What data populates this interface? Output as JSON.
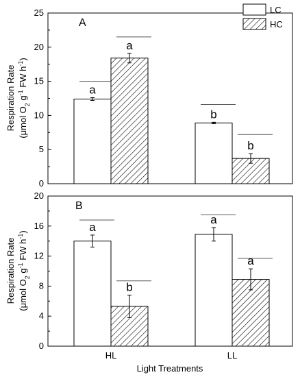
{
  "chart_data": [
    {
      "panel_label": "A",
      "type": "bar",
      "categories": [
        "HL",
        "LL"
      ],
      "ylim": [
        0,
        25
      ],
      "yticks": [
        "0",
        "5",
        "10",
        "15",
        "20",
        "25"
      ],
      "ylabel_line1": "Respiration Rate",
      "ylabel_line2": "(μmol O",
      "ylabel_sub": "2",
      "ylabel_rest": " g",
      "ylabel_sup1": "-1",
      "ylabel_rest2": " FW h",
      "ylabel_sup2": "-1",
      "ylabel_close": ")",
      "series": [
        {
          "name": "LC",
          "values": [
            12.4,
            8.9
          ],
          "errors": [
            0.2,
            0.1
          ],
          "letters": [
            "a",
            "b"
          ],
          "line_levels": [
            15.0,
            11.6
          ]
        },
        {
          "name": "HC",
          "values": [
            18.4,
            3.7
          ],
          "errors": [
            0.7,
            0.7
          ],
          "letters": [
            "a",
            "b"
          ],
          "line_levels": [
            21.5,
            7.2
          ]
        }
      ]
    },
    {
      "panel_label": "B",
      "type": "bar",
      "categories": [
        "HL",
        "LL"
      ],
      "ylim": [
        0,
        20
      ],
      "yticks": [
        "0",
        "4",
        "8",
        "12",
        "16",
        "20"
      ],
      "ylabel_line1": "Respiration Rate",
      "ylabel_line2": "(μmol O",
      "ylabel_sub": "2",
      "ylabel_rest": " g",
      "ylabel_sup1": "-1",
      "ylabel_rest2": " FW h",
      "ylabel_sup2": "-1",
      "ylabel_close": ")",
      "xlabel": "Light Treatments",
      "series": [
        {
          "name": "LC",
          "values": [
            14.0,
            14.9
          ],
          "errors": [
            0.8,
            0.9
          ],
          "letters": [
            "a",
            "a"
          ],
          "line_levels": [
            16.8,
            17.5
          ]
        },
        {
          "name": "HC",
          "values": [
            5.3,
            8.9
          ],
          "errors": [
            1.5,
            1.4
          ],
          "letters": [
            "b",
            "a"
          ],
          "line_levels": [
            8.7,
            11.7
          ]
        }
      ]
    }
  ],
  "legend": {
    "items": [
      {
        "label": "LC",
        "fill": "#ffffff"
      },
      {
        "label": "HC",
        "fill": "hatch"
      }
    ],
    "placement": "top-right"
  },
  "colors": {
    "stroke": "#000000",
    "sig_line": "#555555"
  }
}
